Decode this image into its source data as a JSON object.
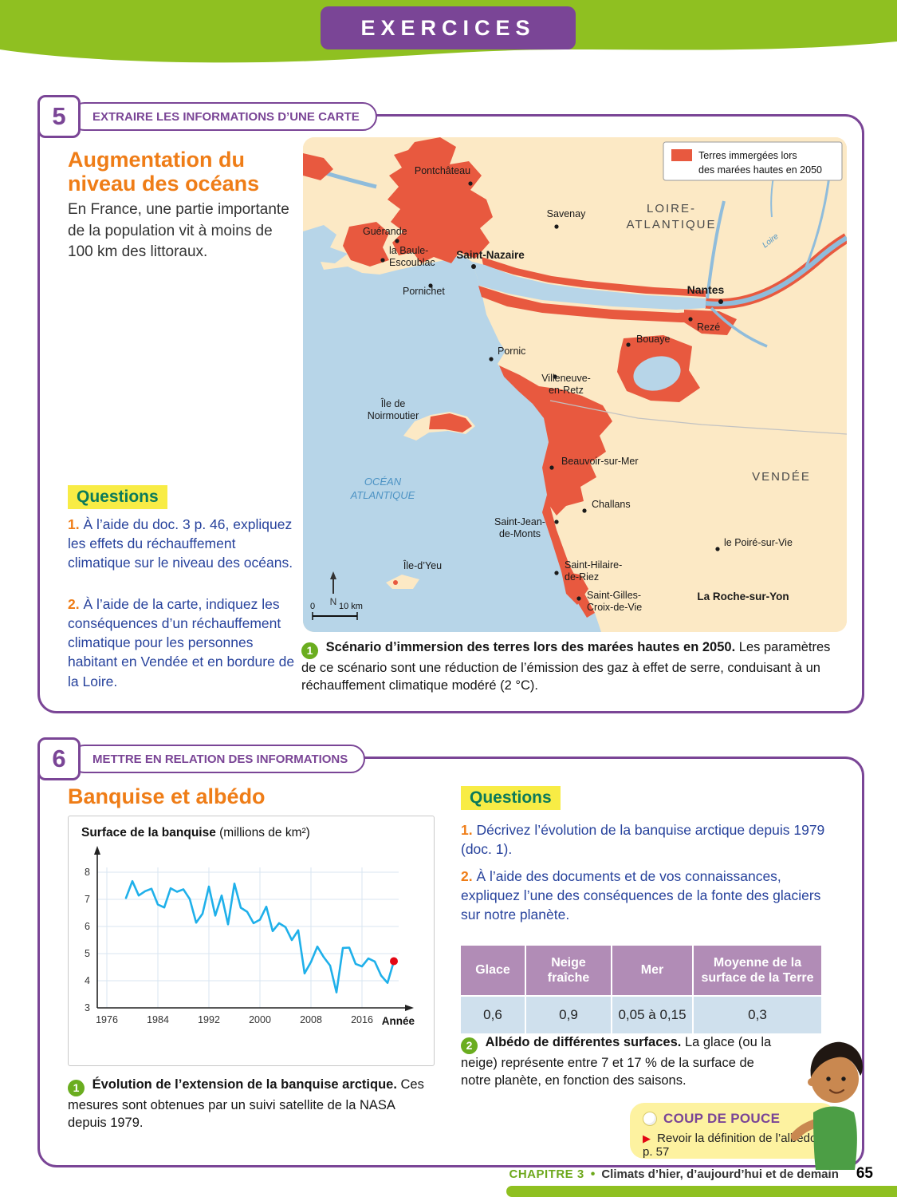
{
  "page": {
    "header_title": "EXERCICES",
    "footer": {
      "chapter": "CHAPITRE 3",
      "separator": "•",
      "chapter_title": "Climats d’hier, d’aujourd’hui et de demain",
      "page_number": "65"
    }
  },
  "exercise5": {
    "number": "5",
    "skill_label": "EXTRAIRE LES INFORMATIONS D’UNE CARTE",
    "title": "Augmentation du niveau des océans",
    "intro": "En France, une partie importante de la population vit à moins de 100 km des littoraux.",
    "questions_heading": "Questions",
    "questions": [
      {
        "num": "1.",
        "text": "À l’aide du doc. 3 p. 46, expliquez les effets du réchauffement climatique sur le niveau des océans."
      },
      {
        "num": "2.",
        "text": "À l’aide de la carte, indiquez les conséquences d’un réchauffement climatique pour les personnes habitant en Vendée et en bordure de la Loire."
      }
    ],
    "map": {
      "legend1": "Terres immergées lors",
      "legend2": "des marées hautes en 2050",
      "labels": {
        "pontchateau": "Pontchâteau",
        "savenay": "Savenay",
        "dept1a": "LOIRE-",
        "dept1b": "ATLANTIQUE",
        "guerande": "Guérande",
        "labaule1": "la Baule-",
        "labaule2": "Escoublac",
        "saintnazaire": "Saint-Nazaire",
        "pornichet": "Pornichet",
        "nantes": "Nantes",
        "reze": "Rezé",
        "bouaye": "Bouaye",
        "pornic": "Pornic",
        "villeneuve1": "Villeneuve-",
        "villeneuve2": "en-Retz",
        "noirmoutier1": "Île de",
        "noirmoutier2": "Noirmoutier",
        "ocean1": "OCÉAN",
        "ocean2": "ATLANTIQUE",
        "beauvoir": "Beauvoir-sur-Mer",
        "vendee": "VENDÉE",
        "challans": "Challans",
        "stjean1": "Saint-Jean-",
        "stjean2": "de-Monts",
        "poire": "le Poiré-sur-Vie",
        "iledyeu": "Île-d’Yeu",
        "sthilaire1": "Saint-Hilaire-",
        "sthilaire2": "de-Riez",
        "stgilles1": "Saint-Gilles-",
        "stgilles2": "Croix-de-Vie",
        "laroche": "La Roche-sur-Yon",
        "loireriver": "Loire",
        "north": "N",
        "scale0": "0",
        "scale10": "10 km"
      }
    },
    "caption": {
      "num": "1",
      "bold": "Scénario d’immersion des terres lors des marées hautes en 2050.",
      "rest": "Les paramètres de ce scénario sont une réduction de l’émission des gaz à effet de serre, conduisant à un réchauffement climatique modéré (2 °C)."
    }
  },
  "exercise6": {
    "number": "6",
    "skill_label": "METTRE EN RELATION DES INFORMATIONS",
    "title": "Banquise et albédo",
    "questions_heading": "Questions",
    "questions": [
      {
        "num": "1.",
        "text": "Décrivez l’évolution de la banquise arctique depuis 1979 (doc. 1)."
      },
      {
        "num": "2.",
        "text": "À l’aide des documents et de vos connaissances, expliquez l’une des conséquences de la fonte des glaciers sur notre planète."
      }
    ],
    "chart_caption": {
      "num": "1",
      "bold": "Évolution de l’extension de la banquise arctique.",
      "rest": "Ces mesures sont obtenues par un suivi satellite de la NASA depuis 1979."
    },
    "table": {
      "headers": [
        "Glace",
        "Neige fraîche",
        "Mer",
        "Moyenne de la surface de la Terre"
      ],
      "values": [
        "0,6",
        "0,9",
        "0,05 à 0,15",
        "0,3"
      ]
    },
    "table_caption": {
      "num": "2",
      "bold": "Albédo de différentes surfaces.",
      "rest": "La glace (ou la neige) représente entre 7 et 17 % de la surface de notre planète, en fonction des saisons."
    },
    "coup_de_pouce": {
      "title": "COUP DE POUCE",
      "arrow": "▶",
      "tip": "Revoir la définition de l’albédo p. 57"
    }
  },
  "chart_data": {
    "type": "line",
    "title": "Surface de la banquise",
    "title_unit": " (millions de km²)",
    "xlabel": "Année",
    "x_ticks": [
      1976,
      1984,
      1992,
      2000,
      2008,
      2016
    ],
    "y_ticks": [
      3,
      4,
      5,
      6,
      7,
      8
    ],
    "xlim": [
      1974.5,
      2023
    ],
    "ylim": [
      3,
      8
    ],
    "grid": true,
    "line_color": "#1fb0ea",
    "endpoint_color": "#e30613",
    "series": [
      {
        "name": "Surface de la banquise arctique (millions de km²)",
        "x": [
          1979,
          1980,
          1981,
          1982,
          1983,
          1984,
          1985,
          1986,
          1987,
          1988,
          1989,
          1990,
          1991,
          1992,
          1993,
          1994,
          1995,
          1996,
          1997,
          1998,
          1999,
          2000,
          2001,
          2002,
          2003,
          2004,
          2005,
          2006,
          2007,
          2008,
          2009,
          2010,
          2011,
          2012,
          2013,
          2014,
          2015,
          2016,
          2017,
          2018,
          2019,
          2020,
          2021
        ],
        "y": [
          7.05,
          7.67,
          7.14,
          7.3,
          7.39,
          6.81,
          6.7,
          7.41,
          7.28,
          7.37,
          7.01,
          6.14,
          6.47,
          7.47,
          6.4,
          7.14,
          6.08,
          7.58,
          6.69,
          6.54,
          6.12,
          6.25,
          6.73,
          5.83,
          6.12,
          5.98,
          5.5,
          5.86,
          4.27,
          4.69,
          5.26,
          4.87,
          4.56,
          3.57,
          5.21,
          5.22,
          4.62,
          4.53,
          4.82,
          4.71,
          4.19,
          3.92,
          4.72
        ]
      }
    ]
  }
}
